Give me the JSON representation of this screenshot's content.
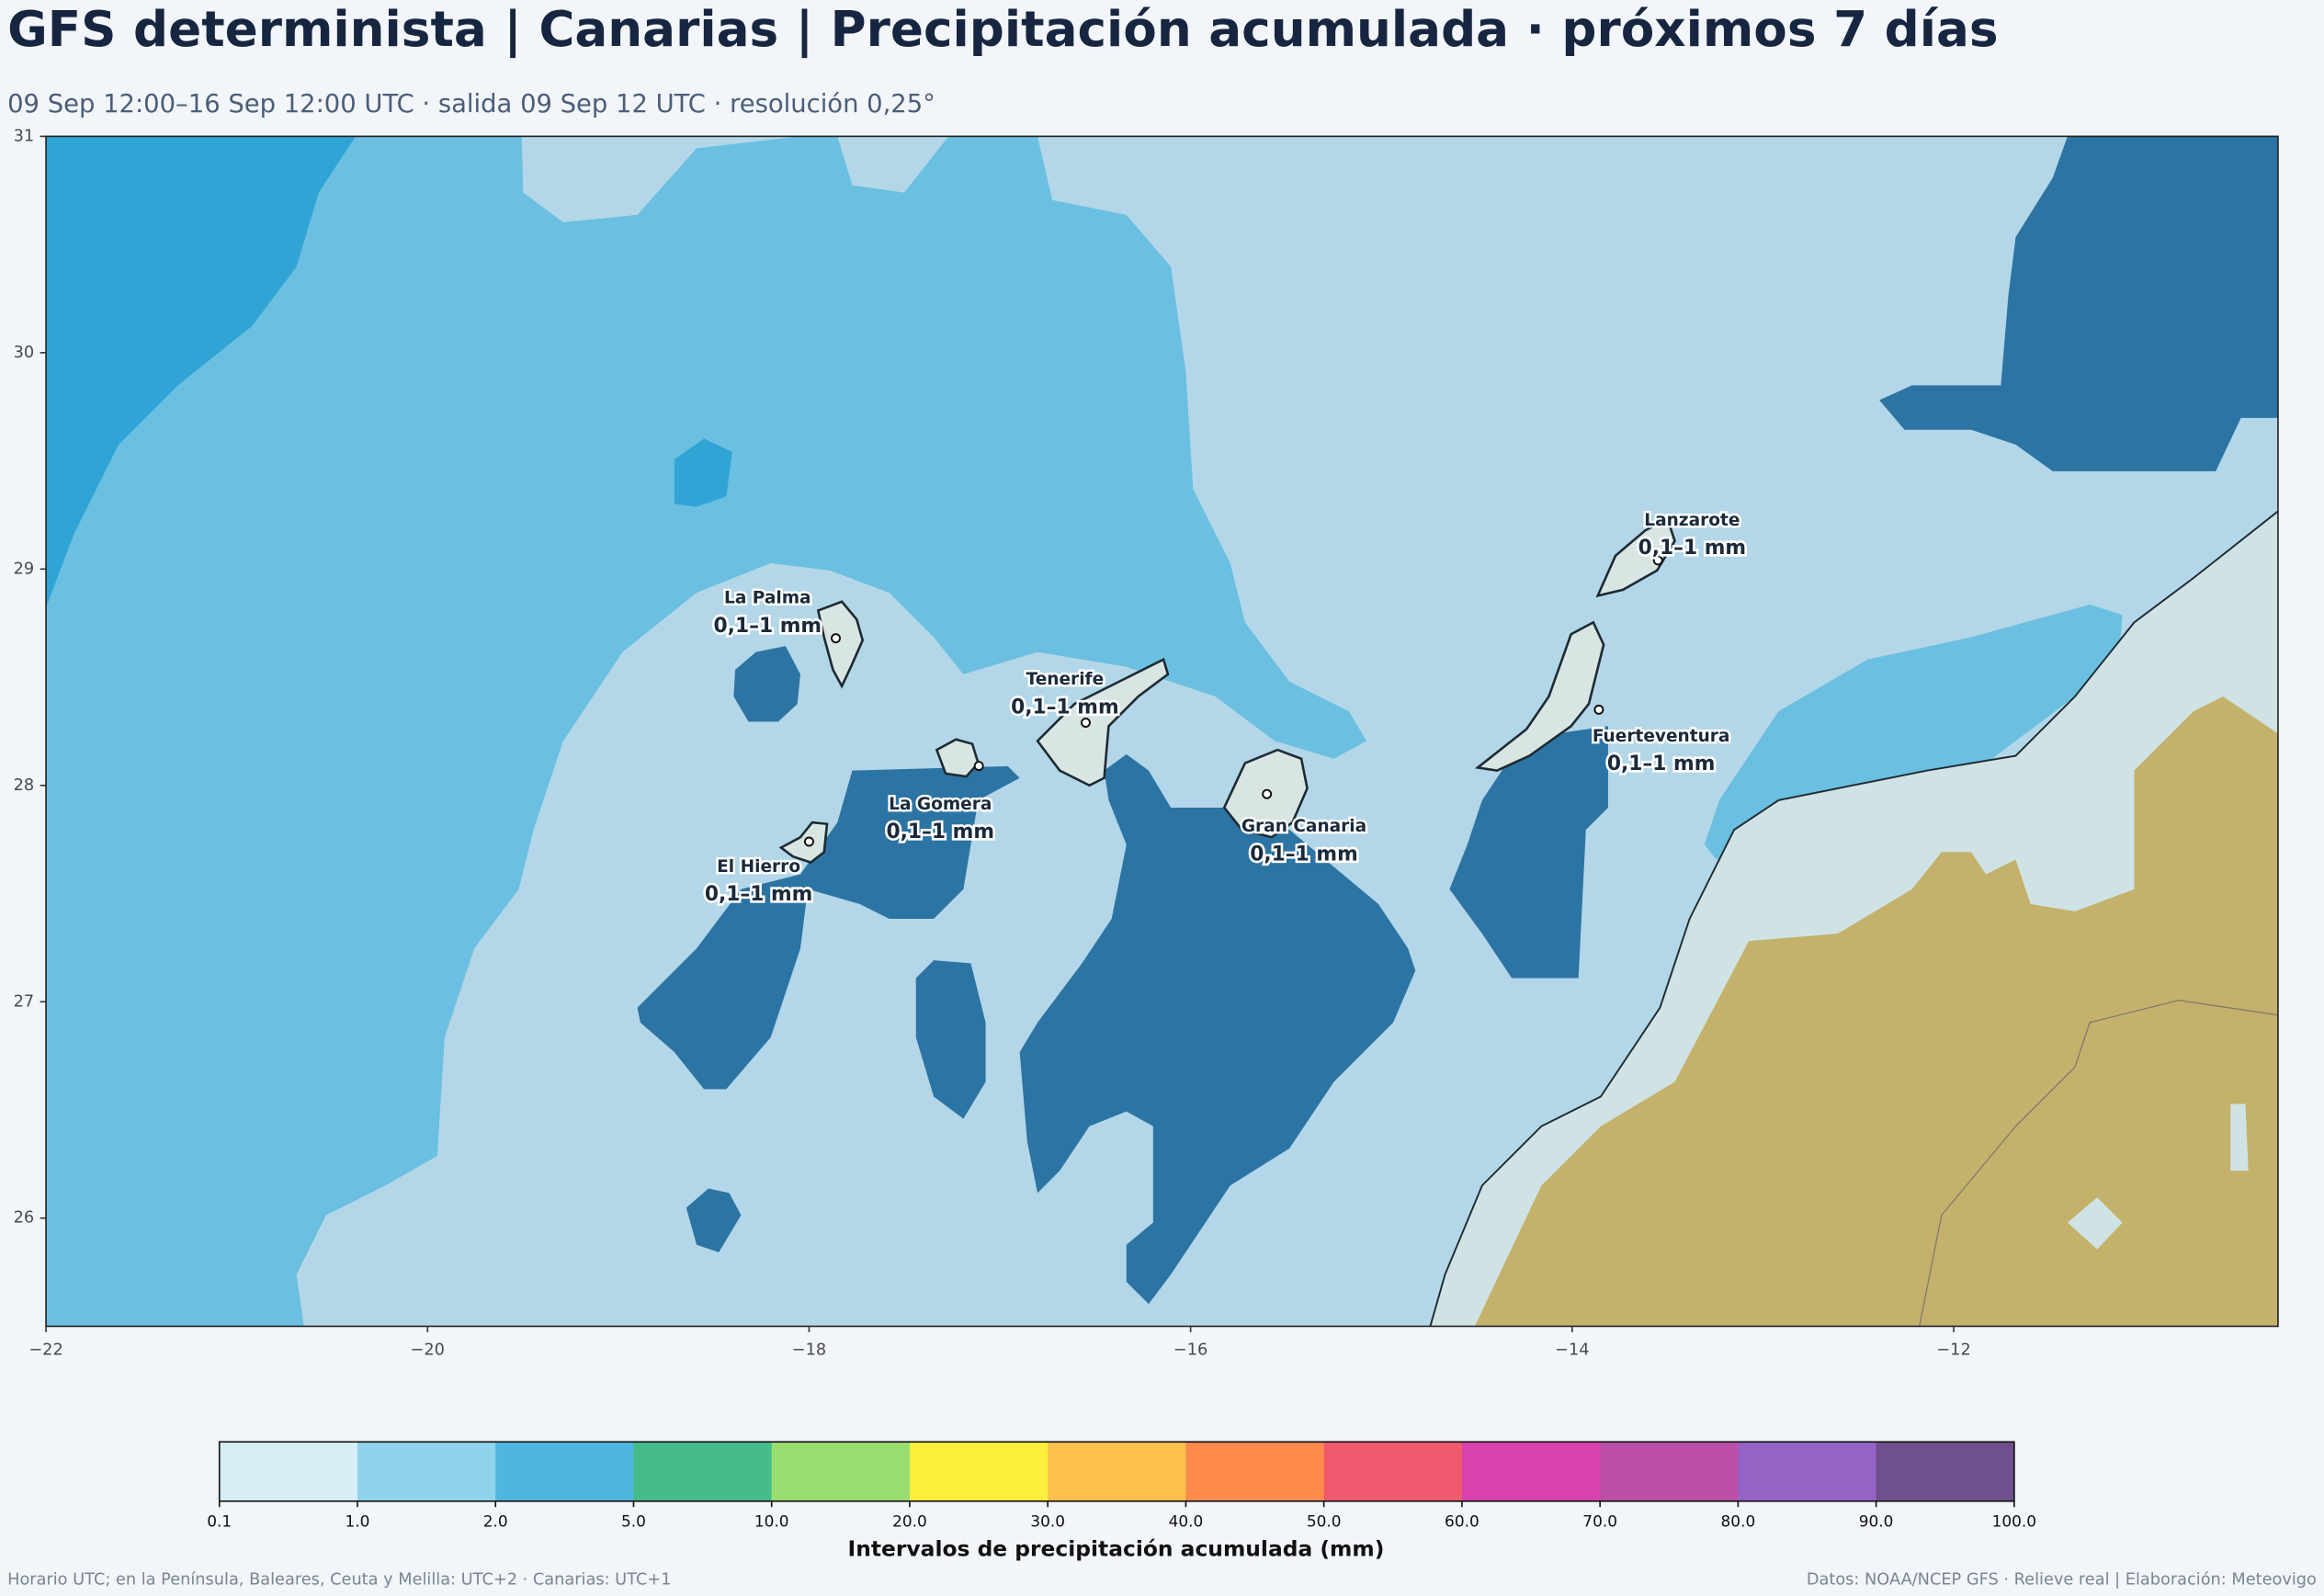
{
  "header": {
    "title": "GFS determinista | Canarias | Precipitación acumulada · próximos 7 días",
    "subtitle": "09 Sep 12:00–16 Sep 12:00 UTC · salida 09 Sep 12 UTC · resolución 0,25°"
  },
  "map": {
    "xlim": [
      -22,
      -10.3
    ],
    "ylim": [
      25.5,
      31
    ],
    "xticks": [
      {
        "value": -22,
        "label": "−22"
      },
      {
        "value": -20,
        "label": "−20"
      },
      {
        "value": -18,
        "label": "−18"
      },
      {
        "value": -16,
        "label": "−16"
      },
      {
        "value": -14,
        "label": "−14"
      },
      {
        "value": -12,
        "label": "−12"
      }
    ],
    "yticks": [
      26,
      27,
      28,
      29,
      30,
      31
    ],
    "places": [
      {
        "name": "La Palma",
        "value_label": "0,1–1 mm",
        "lon": -17.86,
        "lat": 28.68
      },
      {
        "name": "Tenerife",
        "value_label": "0,1–1 mm",
        "lon": -16.55,
        "lat": 28.29
      },
      {
        "name": "La Gomera",
        "value_label": "0,1–1 mm",
        "lon": -17.11,
        "lat": 28.09
      },
      {
        "name": "El Hierro",
        "value_label": "0,1–1 mm",
        "lon": -18.0,
        "lat": 27.74
      },
      {
        "name": "Gran Canaria",
        "value_label": "0,1–1 mm",
        "lon": -15.6,
        "lat": 27.96
      },
      {
        "name": "Lanzarote",
        "value_label": "0,1–1 mm",
        "lon": -13.55,
        "lat": 29.04
      },
      {
        "name": "Fuerteventura",
        "value_label": "0,1–1 mm",
        "lon": -13.86,
        "lat": 28.35
      }
    ]
  },
  "colorbar": {
    "label": "Intervalos de precipitación acumulada (mm)",
    "ticks": [
      0.1,
      {
        "value": 1,
        "label": "1.0"
      },
      {
        "value": 2,
        "label": "2.0"
      },
      {
        "value": 5,
        "label": "5.0"
      },
      {
        "value": 10,
        "label": "10.0"
      },
      {
        "value": 20,
        "label": "20.0"
      },
      {
        "value": 30,
        "label": "30.0"
      },
      {
        "value": 40,
        "label": "40.0"
      },
      {
        "value": 50,
        "label": "50.0"
      },
      {
        "value": 60,
        "label": "60.0"
      },
      {
        "value": 70,
        "label": "70.0"
      },
      {
        "value": 80,
        "label": "80.0"
      },
      {
        "value": 90,
        "label": "90.0"
      },
      {
        "value": 100,
        "label": "100.0"
      }
    ],
    "colors": [
      "#d6eef5",
      "#8fd3ec",
      "#4fb6e0",
      "#46bc8a",
      "#9ade72",
      "#fcef3c",
      "#fec04c",
      "#fe8a4c",
      "#f05a6e",
      "#d742ad",
      "#bc4fa8",
      "#9463c6",
      "#6e508e"
    ]
  },
  "footer": {
    "left": "Horario UTC; en la Península, Baleares, Ceuta y Melilla: UTC+2 · Canarias: UTC+1",
    "right": "Datos: NOAA/NCEP GFS · Relieve real | Elaboración: Meteovigo"
  }
}
